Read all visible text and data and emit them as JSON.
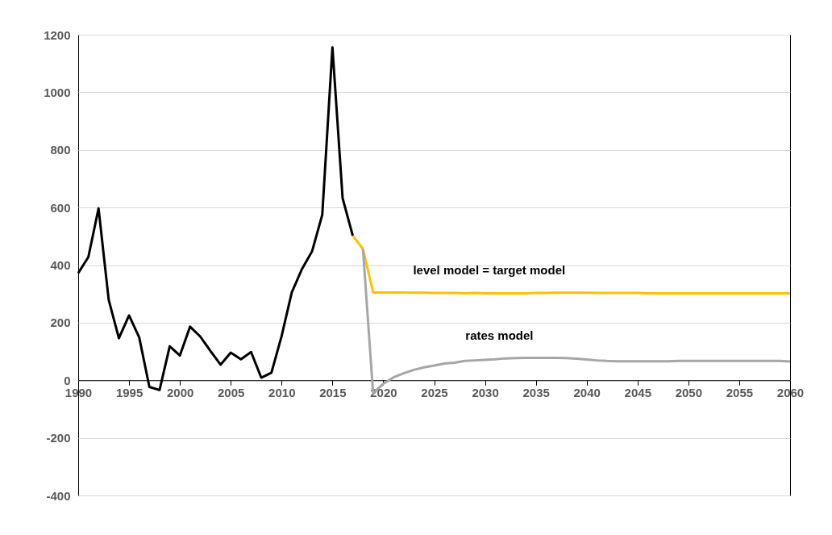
{
  "chart_data": {
    "type": "line",
    "xlim": [
      1990,
      2060
    ],
    "xticks": [
      1990,
      1995,
      2000,
      2005,
      2010,
      2015,
      2020,
      2025,
      2030,
      2035,
      2040,
      2045,
      2050,
      2055,
      2060
    ],
    "ylim": [
      -400,
      1200
    ],
    "yticks": [
      -400,
      -200,
      0,
      200,
      400,
      600,
      800,
      1000,
      1200
    ],
    "grid": "y",
    "series": [
      {
        "color": "#000000",
        "x": [
          1990,
          1991,
          1992,
          1993,
          1994,
          1995,
          1996,
          1997,
          1998,
          1999,
          2000,
          2001,
          2002,
          2003,
          2004,
          2005,
          2006,
          2007,
          2008,
          2009,
          2010,
          2011,
          2012,
          2013,
          2014,
          2015,
          2016,
          2017
        ],
        "values": [
          372,
          428,
          597,
          279,
          146,
          225,
          149,
          -23,
          -34,
          118,
          86,
          186,
          152,
          102,
          54,
          96,
          73,
          98,
          9,
          26,
          153,
          305,
          386,
          448,
          575,
          1156,
          632,
          502
        ]
      },
      {
        "name": "level model = target model",
        "color": "#ffc000",
        "x": [
          2017,
          2018,
          2019,
          2020,
          2021,
          2022,
          2023,
          2024,
          2025,
          2026,
          2027,
          2028,
          2029,
          2030,
          2031,
          2032,
          2033,
          2034,
          2035,
          2036,
          2037,
          2038,
          2039,
          2040,
          2041,
          2042,
          2043,
          2044,
          2045,
          2046,
          2047,
          2048,
          2049,
          2050,
          2051,
          2052,
          2053,
          2054,
          2055,
          2056,
          2057,
          2058,
          2059,
          2060
        ],
        "values": [
          502,
          456,
          305,
          305,
          305,
          305,
          304,
          304,
          303,
          303,
          303,
          302,
          303,
          302,
          302,
          302,
          302,
          302,
          303,
          303,
          304,
          304,
          304,
          304,
          303,
          303,
          303,
          303,
          303,
          302,
          302,
          302,
          302,
          302,
          302,
          302,
          302,
          302,
          302,
          302,
          302,
          302,
          302,
          302
        ]
      },
      {
        "name": "rates model",
        "color": "#a6a6a6",
        "x": [
          2018,
          2019,
          2020,
          2021,
          2022,
          2023,
          2024,
          2025,
          2026,
          2027,
          2028,
          2029,
          2030,
          2031,
          2032,
          2033,
          2034,
          2035,
          2036,
          2037,
          2038,
          2039,
          2040,
          2041,
          2042,
          2043,
          2044,
          2045,
          2046,
          2047,
          2048,
          2049,
          2050,
          2051,
          2052,
          2053,
          2054,
          2055,
          2056,
          2057,
          2058,
          2059,
          2060
        ],
        "values": [
          456,
          -45,
          -12,
          10,
          24,
          36,
          45,
          51,
          58,
          61,
          67,
          69,
          71,
          73,
          76,
          77,
          78,
          78,
          78,
          78,
          77,
          75,
          72,
          69,
          67,
          66,
          66,
          66,
          66,
          66,
          66,
          67,
          67,
          67,
          67,
          67,
          67,
          67,
          67,
          67,
          67,
          67,
          65
        ]
      }
    ]
  }
}
